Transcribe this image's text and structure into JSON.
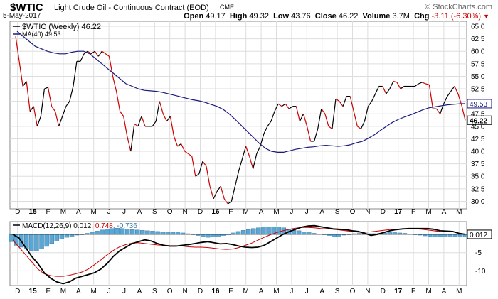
{
  "header": {
    "symbol": "$WTIC",
    "description": "Light Crude Oil - Continuous Contract (EOD)",
    "exchange": "CME",
    "date": "5-May-2017",
    "brand": "© StockCharts.com",
    "ohlc": {
      "open_label": "Open",
      "open": "49.17",
      "high_label": "High",
      "high": "49.32",
      "low_label": "Low",
      "low": "43.76",
      "close_label": "Close",
      "close": "46.22",
      "volume_label": "Volume",
      "volume": "3.7M",
      "chg_label": "Chg",
      "chg": "-3.11 (-6.30%)"
    }
  },
  "chart_data": [
    {
      "type": "line",
      "panel": "price",
      "legend": [
        "$WTIC (Weekly) 46.22",
        "MA(40) 49.53"
      ],
      "legend_position": "top-left",
      "y_axis_position": "right",
      "ylim": [
        28.5,
        66
      ],
      "yticks": [
        30.0,
        32.5,
        35.0,
        37.5,
        40.0,
        42.5,
        45.0,
        47.5,
        50.0,
        52.5,
        55.0,
        57.5,
        60.0,
        62.5,
        65.0
      ],
      "last_value_labels": [
        "49.53",
        "46.22"
      ],
      "grid": true,
      "colors": {
        "up": "#000000",
        "down": "#cc0000",
        "ma": "#1a1a80"
      },
      "series": [
        {
          "name": "$WTIC (Weekly)",
          "values": [
            63.0,
            58.0,
            53.0,
            54.0,
            48.0,
            49.0,
            45.0,
            47.0,
            52.5,
            52.8,
            49.0,
            48.0,
            45.0,
            47.0,
            49.0,
            50.0,
            53.0,
            58.0,
            58.0,
            59.5,
            60.0,
            59.5,
            60.0,
            59.0,
            60.0,
            59.5,
            59.0,
            55.0,
            52.0,
            48.0,
            47.0,
            43.0,
            40.0,
            45.5,
            45.0,
            47.0,
            45.0,
            45.0,
            45.0,
            46.0,
            50.0,
            47.5,
            46.0,
            47.0,
            43.0,
            41.0,
            41.5,
            40.0,
            39.5,
            39.0,
            35.0,
            35.5,
            38.0,
            37.0,
            33.0,
            30.5,
            32.0,
            33.0,
            30.5,
            29.5,
            30.0,
            33.0,
            36.0,
            38.5,
            41.0,
            39.0,
            36.5,
            39.5,
            41.0,
            43.5,
            45.0,
            46.0,
            48.0,
            49.5,
            49.0,
            49.5,
            48.5,
            49.0,
            49.0,
            46.0,
            47.5,
            45.0,
            42.0,
            42.0,
            44.5,
            48.5,
            47.5,
            45.0,
            44.5,
            50.5,
            50.0,
            49.0,
            51.0,
            51.0,
            48.0,
            45.0,
            44.5,
            46.0,
            49.0,
            50.0,
            51.5,
            53.0,
            53.0,
            51.5,
            52.5,
            54.0,
            53.8,
            52.5,
            53.0,
            53.0,
            53.0,
            53.0,
            53.5,
            53.8,
            53.5,
            53.3,
            48.5,
            48.5,
            47.5,
            49.5,
            51.0,
            52.0,
            53.0,
            51.5,
            49.2,
            46.2
          ]
        },
        {
          "name": "MA(40)",
          "values": [
            64.0,
            63.0,
            62.0,
            61.0,
            60.5,
            60.0,
            59.7,
            59.5,
            59.5,
            59.8,
            60.0,
            60.0,
            59.5,
            58.5,
            57.5,
            56.5,
            55.5,
            54.5,
            53.5,
            53.0,
            52.5,
            52.2,
            52.1,
            52.0,
            51.8,
            51.5,
            51.2,
            50.9,
            50.6,
            50.3,
            50.1,
            49.8,
            49.4,
            49.0,
            48.4,
            47.5,
            46.4,
            45.2,
            44.0,
            42.8,
            41.6,
            40.6,
            40.0,
            39.8,
            39.8,
            40.1,
            40.4,
            40.6,
            40.8,
            40.9,
            41.1,
            41.2,
            41.1,
            41.0,
            41.1,
            41.3,
            41.7,
            42.0,
            42.6,
            43.3,
            44.2,
            45.0,
            45.8,
            46.4,
            46.9,
            47.3,
            47.8,
            48.3,
            48.7,
            48.9,
            49.1,
            49.3,
            49.4,
            49.5,
            49.53
          ]
        }
      ]
    },
    {
      "type": "line",
      "panel": "macd",
      "legend": "MACD(12,26,9) 0.012, 0.748, -0.736",
      "legend_parts": [
        "MACD(12,26,9)",
        "0.012",
        "0.748",
        "-0.736"
      ],
      "legend_colors": [
        "#000000",
        "#000000",
        "#cc0000",
        "#3a7aa8"
      ],
      "ylim": [
        -14,
        3.5
      ],
      "yticks": [
        -10,
        -5
      ],
      "last_value_label": "0.012",
      "colors": {
        "macd": "#000000",
        "signal": "#cc0000",
        "histogram": "#5aa7d6",
        "zero": "#000000"
      },
      "series": [
        {
          "name": "MACD",
          "values": [
            0,
            -1.0,
            -3.5,
            -6.0,
            -8.0,
            -10.5,
            -12.0,
            -13.0,
            -13.5,
            -13.0,
            -12.0,
            -11.5,
            -11.0,
            -10.5,
            -9.5,
            -8.0,
            -6.0,
            -4.5,
            -3.5,
            -2.5,
            -2.0,
            -1.5,
            -1.8,
            -2.5,
            -3.0,
            -3.2,
            -3.2,
            -3.0,
            -2.8,
            -2.5,
            -2.2,
            -2.0,
            -2.3,
            -2.6,
            -2.5,
            -2.8,
            -3.2,
            -3.5,
            -3.6,
            -3.5,
            -3.0,
            -2.0,
            -1.0,
            0.0,
            0.8,
            1.4,
            2.0,
            2.3,
            2.4,
            2.1,
            1.8,
            1.5,
            1.4,
            1.3,
            1.0,
            0.8,
            0.3,
            -0.3,
            0.0,
            0.5,
            1.0,
            1.3,
            1.5,
            1.6,
            1.6,
            1.6,
            1.6,
            1.4,
            1.0,
            0.9,
            0.8,
            0.3,
            0.01
          ]
        },
        {
          "name": "Signal",
          "values": [
            -1.5,
            -3.5,
            -5.5,
            -7.5,
            -9.5,
            -10.8,
            -11.3,
            -11.5,
            -11.5,
            -11.2,
            -10.8,
            -10.3,
            -9.5,
            -8.3,
            -7.0,
            -5.6,
            -4.4,
            -3.4,
            -2.8,
            -2.4,
            -2.3,
            -2.5,
            -2.7,
            -2.9,
            -3.0,
            -3.1,
            -3.1,
            -3.2,
            -3.4,
            -3.5,
            -3.5,
            -3.6,
            -3.8,
            -4.0,
            -4.1,
            -4.0,
            -3.6,
            -3.0,
            -2.4,
            -1.6,
            -0.8,
            -0.1,
            0.5,
            1.0,
            1.4,
            1.7,
            1.9,
            1.9,
            1.8,
            1.6,
            1.5,
            1.4,
            1.2,
            1.0,
            0.8,
            0.6,
            0.6,
            0.7,
            0.9,
            1.1,
            1.3,
            1.4,
            1.5,
            1.5,
            1.5,
            1.4,
            1.2,
            1.0,
            0.75
          ]
        },
        {
          "name": "Histogram",
          "values": [
            -2.0,
            -3.0,
            -3.5,
            -4.0,
            -4.5,
            -4.5,
            -4.0,
            -3.3,
            -2.5,
            -1.8,
            -1.2,
            -0.8,
            -0.5,
            -0.2,
            0.0,
            0.3,
            0.6,
            0.9,
            1.2,
            1.4,
            1.6,
            1.7,
            1.6,
            1.5,
            1.3,
            1.2,
            1.1,
            1.0,
            0.9,
            0.8,
            0.7,
            0.7,
            0.6,
            0.5,
            0.4,
            0.2,
            0.0,
            -0.3,
            -0.6,
            -0.8,
            -0.7,
            -0.5,
            -0.3,
            0.0,
            0.4,
            0.8,
            1.1,
            1.3,
            1.6,
            1.8,
            2.0,
            2.1,
            2.1,
            2.0,
            1.8,
            1.5,
            1.2,
            1.0,
            0.7,
            0.5,
            0.3,
            0.1,
            -0.1,
            -0.3,
            -0.6,
            -0.5,
            -0.2,
            0.0,
            0.2,
            0.3,
            0.3,
            0.2,
            0.2,
            0.3,
            0.4,
            0.5,
            0.5,
            0.4,
            0.3,
            0.1,
            0.0,
            -0.2,
            -0.4,
            -0.6,
            -0.7,
            -0.6,
            -0.5,
            -0.5,
            -0.6,
            -0.7,
            -0.7
          ]
        }
      ]
    }
  ],
  "x_axis": {
    "labels": [
      "D",
      "15",
      "F",
      "M",
      "A",
      "M",
      "J",
      "J",
      "A",
      "S",
      "O",
      "N",
      "D",
      "16",
      "F",
      "M",
      "A",
      "M",
      "J",
      "J",
      "A",
      "S",
      "O",
      "N",
      "D",
      "17",
      "F",
      "M",
      "A",
      "M"
    ],
    "bold": [
      "15",
      "16",
      "17"
    ]
  }
}
